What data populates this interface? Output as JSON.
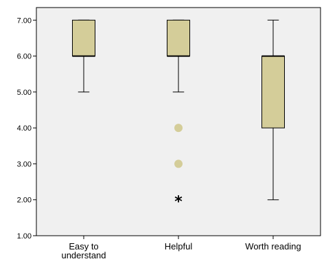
{
  "chart_data": {
    "type": "box",
    "categories": [
      "Easy to understand",
      "Helpful",
      "Worth reading"
    ],
    "category_label_lines": [
      [
        "Easy to",
        "understand"
      ],
      [
        "Helpful"
      ],
      [
        "Worth reading"
      ]
    ],
    "boxes": [
      {
        "name": "Easy to understand",
        "min": 5.0,
        "q1": 6.0,
        "median": 6.0,
        "q3": 7.0,
        "max": 7.0,
        "outliers": [],
        "extremes": []
      },
      {
        "name": "Helpful",
        "min": 5.0,
        "q1": 6.0,
        "median": 6.0,
        "q3": 7.0,
        "max": 7.0,
        "outliers": [
          4.0,
          3.0
        ],
        "extremes": [
          2.0
        ]
      },
      {
        "name": "Worth reading",
        "min": 2.0,
        "q1": 4.0,
        "median": 6.0,
        "q3": 6.0,
        "max": 7.0,
        "outliers": [],
        "extremes": []
      }
    ],
    "yticks": [
      "1.00",
      "2.00",
      "3.00",
      "4.00",
      "5.00",
      "6.00",
      "7.00"
    ],
    "ylim": [
      1,
      7.35
    ],
    "grid": false,
    "colors": {
      "box_fill": "#d4cd99",
      "plot_background": "#f0f0f0",
      "outlier": "#d4cd99",
      "line": "#000000"
    }
  }
}
